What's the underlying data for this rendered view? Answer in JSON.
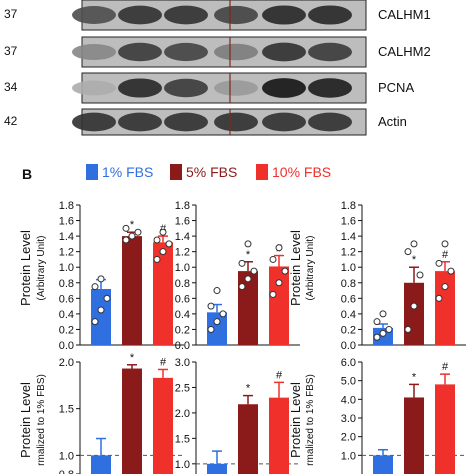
{
  "blots": {
    "rows": [
      {
        "label": "CALHM1",
        "kda": "37",
        "bands": [
          0.65,
          0.8,
          0.8,
          0.7,
          0.85,
          0.85
        ]
      },
      {
        "label": "CALHM2",
        "kda": "37",
        "bands": [
          0.35,
          0.75,
          0.7,
          0.4,
          0.8,
          0.75
        ]
      },
      {
        "label": "PCNA",
        "kda": "34",
        "bands": [
          0.15,
          0.85,
          0.75,
          0.25,
          0.95,
          0.9
        ]
      },
      {
        "label": "Actin",
        "kda": "42",
        "bands": [
          0.8,
          0.8,
          0.8,
          0.8,
          0.8,
          0.8
        ]
      }
    ]
  },
  "panel_b": {
    "letter": "B",
    "legend": [
      {
        "name": "1% FBS",
        "color": "#2f6fe0"
      },
      {
        "name": "5% FBS",
        "color": "#8b1a1a"
      },
      {
        "name": "10% FBS",
        "color": "#f0302a"
      }
    ],
    "ylabel_top_main": "Protein Level",
    "ylabel_top_sub": "(Arbitrary Unit)",
    "ylabel_bottom_main": "Protein Level",
    "ylabel_bottom_sub": "rmalized to 1% FBS)"
  },
  "chart_data": [
    {
      "type": "bar",
      "categories": [
        "1% FBS",
        "5% FBS",
        "10% FBS"
      ],
      "values": [
        0.72,
        1.4,
        1.32
      ],
      "errors": [
        0.12,
        0.05,
        0.08
      ],
      "annotations": [
        "",
        "*",
        "#"
      ],
      "ylim": [
        0,
        1.8
      ],
      "yticks": [
        "0.0",
        "0.2",
        "0.4",
        "0.6",
        "0.8",
        "1.0",
        "1.2",
        "1.4",
        "1.6",
        "1.8"
      ],
      "points": [
        [
          0.3,
          0.45,
          0.6,
          0.75,
          0.85
        ],
        [
          1.35,
          1.4,
          1.45,
          1.5
        ],
        [
          1.1,
          1.2,
          1.3,
          1.35,
          1.45
        ]
      ]
    },
    {
      "type": "bar",
      "categories": [
        "1% FBS",
        "5% FBS",
        "10% FBS"
      ],
      "values": [
        0.42,
        0.95,
        1.01
      ],
      "errors": [
        0.1,
        0.12,
        0.14
      ],
      "annotations": [
        "",
        "*",
        "#"
      ],
      "ylim": [
        0,
        1.8
      ],
      "yticks": [
        "0.0",
        "0.2",
        "0.4",
        "0.6",
        "0.8",
        "1.0",
        "1.2",
        "1.4",
        "1.6",
        "1.8"
      ],
      "points": [
        [
          0.2,
          0.3,
          0.4,
          0.5,
          0.7
        ],
        [
          0.75,
          0.85,
          0.95,
          1.05,
          1.3
        ],
        [
          0.65,
          0.8,
          0.95,
          1.1,
          1.25
        ]
      ]
    },
    {
      "type": "bar",
      "categories": [
        "1% FBS",
        "5% FBS",
        "10% FBS"
      ],
      "values": [
        0.22,
        0.8,
        0.95
      ],
      "errors": [
        0.05,
        0.2,
        0.12
      ],
      "annotations": [
        "",
        "*",
        "#"
      ],
      "ylim": [
        0,
        1.8
      ],
      "yticks": [
        "0.0",
        "0.2",
        "0.4",
        "0.6",
        "0.8",
        "1.0",
        "1.2",
        "1.4",
        "1.6",
        "1.8"
      ],
      "points": [
        [
          0.1,
          0.15,
          0.2,
          0.3,
          0.4
        ],
        [
          0.2,
          0.5,
          0.9,
          1.2,
          1.3
        ],
        [
          0.6,
          0.75,
          0.95,
          1.05,
          1.3
        ]
      ]
    },
    {
      "type": "bar",
      "categories": [
        "1% FBS",
        "5% FBS",
        "10% FBS"
      ],
      "values": [
        1.0,
        1.93,
        1.83
      ],
      "errors": [
        0.18,
        0.04,
        0.09
      ],
      "annotations": [
        "",
        "*",
        "#"
      ],
      "ylim": [
        0.8,
        2.0
      ],
      "yticks": [
        "0.8",
        "1.0",
        "1.5",
        "2.0"
      ],
      "reference_line": 1.0
    },
    {
      "type": "bar",
      "categories": [
        "1% FBS",
        "5% FBS",
        "10% FBS"
      ],
      "values": [
        1.0,
        2.17,
        2.3
      ],
      "errors": [
        0.25,
        0.17,
        0.3
      ],
      "annotations": [
        "",
        "*",
        "#"
      ],
      "ylim": [
        0.8,
        3.0
      ],
      "yticks": [
        "1.0",
        "1.5",
        "2.0",
        "2.5",
        "3.0"
      ],
      "reference_line": 1.0
    },
    {
      "type": "bar",
      "categories": [
        "1% FBS",
        "5% FBS",
        "10% FBS"
      ],
      "values": [
        1.0,
        4.1,
        4.8
      ],
      "errors": [
        0.3,
        0.7,
        0.55
      ],
      "annotations": [
        "",
        "*",
        "#"
      ],
      "ylim": [
        0,
        6.0
      ],
      "yticks": [
        "1.0",
        "2.0",
        "3.0",
        "4.0",
        "5.0",
        "6.0"
      ],
      "reference_line": 1.0
    }
  ]
}
